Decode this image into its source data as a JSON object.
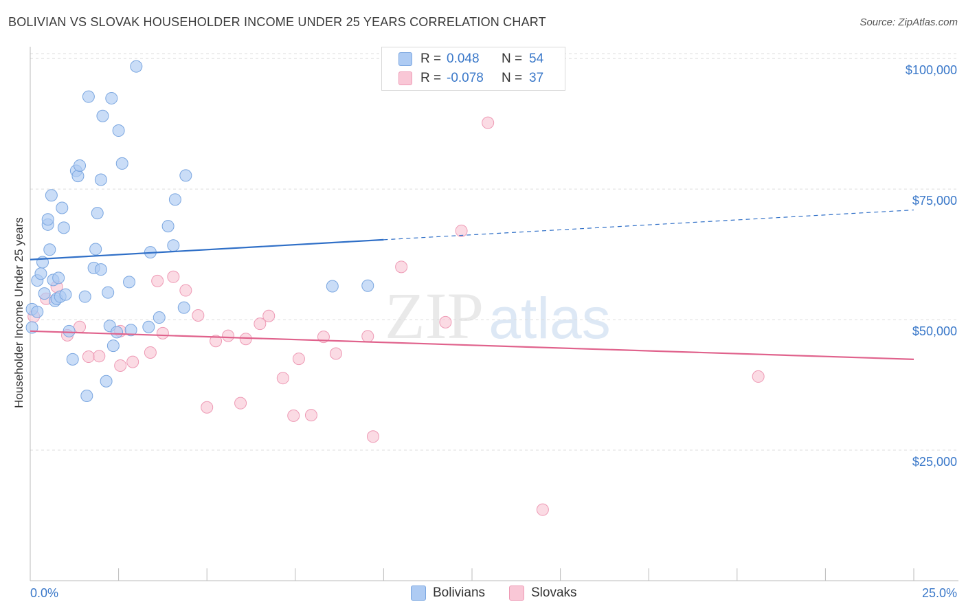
{
  "title": "BOLIVIAN VS SLOVAK HOUSEHOLDER INCOME UNDER 25 YEARS CORRELATION CHART",
  "source": "Source: ZipAtlas.com",
  "watermark": {
    "zip": "ZIP",
    "atlas": "atlas"
  },
  "legend": {
    "rows": [
      {
        "r_label": "R =",
        "r_value": "0.048",
        "n_label": "N =",
        "n_value": "54",
        "color": "#aecbf3",
        "border": "#7aa6e0"
      },
      {
        "r_label": "R =",
        "r_value": "-0.078",
        "n_label": "N =",
        "n_value": "37",
        "color": "#f9c7d6",
        "border": "#ee9ab5"
      }
    ]
  },
  "bottom_legend": [
    {
      "label": "Bolivians",
      "color": "#aecbf3",
      "border": "#7aa6e0"
    },
    {
      "label": "Slovaks",
      "color": "#f9c7d6",
      "border": "#ee9ab5"
    }
  ],
  "chart_data": {
    "type": "scatter",
    "title": "BOLIVIAN VS SLOVAK HOUSEHOLDER INCOME UNDER 25 YEARS CORRELATION CHART",
    "xlabel": "",
    "ylabel": "Householder Income Under 25 years",
    "xlim": [
      0,
      25
    ],
    "ylim": [
      0,
      102000
    ],
    "x_tick_labels": [
      "0.0%",
      "25.0%"
    ],
    "y_ticks": [
      25000,
      50000,
      75000,
      100000
    ],
    "y_tick_labels": [
      "$25,000",
      "$50,000",
      "$75,000",
      "$100,000"
    ],
    "grid": true,
    "legend_position": "top-center",
    "series": [
      {
        "name": "Bolivians",
        "color": "#aecbf3",
        "edge": "#7aa6e0",
        "line_color": "#2f6fc7",
        "trend": {
          "x0": 0,
          "y0": 61500,
          "x1": 10,
          "y1": 65300,
          "x_dash_end": 25,
          "y_dash_end": 71000
        },
        "points": [
          [
            0.05,
            48500
          ],
          [
            0.05,
            52000
          ],
          [
            0.2,
            51500
          ],
          [
            0.2,
            57500
          ],
          [
            0.3,
            58800
          ],
          [
            0.35,
            61000
          ],
          [
            0.4,
            55000
          ],
          [
            0.5,
            68200
          ],
          [
            0.5,
            69200
          ],
          [
            0.6,
            73800
          ],
          [
            0.55,
            63400
          ],
          [
            0.65,
            57600
          ],
          [
            0.7,
            53600
          ],
          [
            0.75,
            54000
          ],
          [
            0.8,
            58000
          ],
          [
            0.85,
            54400
          ],
          [
            0.95,
            67600
          ],
          [
            0.9,
            71400
          ],
          [
            1.0,
            54800
          ],
          [
            1.1,
            47800
          ],
          [
            1.2,
            42400
          ],
          [
            1.3,
            78500
          ],
          [
            1.35,
            77500
          ],
          [
            1.4,
            79500
          ],
          [
            1.55,
            54400
          ],
          [
            1.6,
            35400
          ],
          [
            1.65,
            92700
          ],
          [
            1.8,
            59900
          ],
          [
            1.85,
            63500
          ],
          [
            1.9,
            70400
          ],
          [
            2.0,
            59600
          ],
          [
            2.0,
            76800
          ],
          [
            2.05,
            89000
          ],
          [
            2.15,
            38200
          ],
          [
            2.2,
            55200
          ],
          [
            2.25,
            48800
          ],
          [
            2.3,
            92400
          ],
          [
            2.35,
            45000
          ],
          [
            2.45,
            47600
          ],
          [
            2.5,
            86200
          ],
          [
            2.6,
            79900
          ],
          [
            2.8,
            57200
          ],
          [
            2.85,
            48000
          ],
          [
            3.0,
            98500
          ],
          [
            3.35,
            48600
          ],
          [
            3.4,
            62900
          ],
          [
            3.65,
            50400
          ],
          [
            3.9,
            67900
          ],
          [
            4.05,
            64200
          ],
          [
            4.1,
            73000
          ],
          [
            4.35,
            52300
          ],
          [
            4.4,
            77600
          ],
          [
            8.55,
            56400
          ],
          [
            9.55,
            56500
          ]
        ]
      },
      {
        "name": "Slovaks",
        "color": "#f9c7d6",
        "edge": "#ee9ab5",
        "line_color": "#e0628c",
        "trend": {
          "x0": 0,
          "y0": 47800,
          "x1": 25,
          "y1": 42400
        },
        "points": [
          [
            0.1,
            50600
          ],
          [
            0.45,
            54000
          ],
          [
            0.75,
            56300
          ],
          [
            1.05,
            47000
          ],
          [
            1.4,
            48600
          ],
          [
            1.65,
            42900
          ],
          [
            1.95,
            43000
          ],
          [
            2.55,
            47800
          ],
          [
            2.55,
            41200
          ],
          [
            2.9,
            41900
          ],
          [
            3.4,
            43700
          ],
          [
            3.6,
            57400
          ],
          [
            3.75,
            47400
          ],
          [
            4.05,
            58200
          ],
          [
            4.4,
            55600
          ],
          [
            4.75,
            50800
          ],
          [
            5.0,
            33200
          ],
          [
            5.25,
            45900
          ],
          [
            5.6,
            46900
          ],
          [
            5.95,
            34000
          ],
          [
            6.1,
            46300
          ],
          [
            6.5,
            49200
          ],
          [
            6.75,
            50700
          ],
          [
            7.15,
            38800
          ],
          [
            7.45,
            31600
          ],
          [
            7.6,
            42500
          ],
          [
            7.95,
            31700
          ],
          [
            8.3,
            46700
          ],
          [
            8.65,
            43500
          ],
          [
            9.55,
            46800
          ],
          [
            9.7,
            27600
          ],
          [
            10.5,
            60100
          ],
          [
            11.75,
            49500
          ],
          [
            12.2,
            67000
          ],
          [
            12.95,
            87700
          ],
          [
            14.5,
            13600
          ],
          [
            20.6,
            39100
          ]
        ]
      }
    ]
  }
}
